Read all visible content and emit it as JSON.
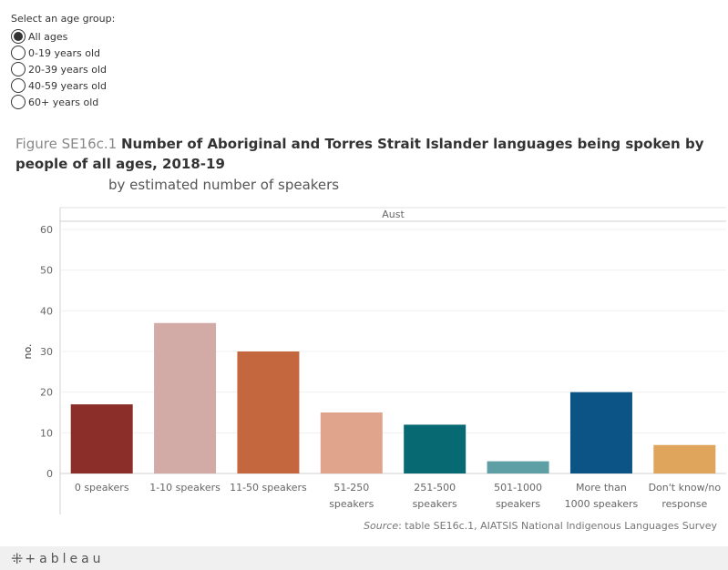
{
  "filter": {
    "title": "Select an age group:",
    "options": [
      "All ages",
      "0-19 years old",
      "20-39 years old",
      "40-59 years old",
      "60+ years old"
    ],
    "selected_index": 0
  },
  "figure": {
    "prefix": "Figure SE16c.1",
    "title": "Number of Aboriginal and Torres Strait Islander languages being spoken by people of all ages, 2018-19",
    "subtitle": "by estimated number of speakers"
  },
  "chart_data": {
    "type": "bar",
    "panel_label": "Aust",
    "ylabel": "no.",
    "ylim": [
      0,
      60
    ],
    "yticks": [
      0,
      10,
      20,
      30,
      40,
      50,
      60
    ],
    "grid": true,
    "categories": [
      [
        "0 speakers"
      ],
      [
        "1-10 speakers"
      ],
      [
        "11-50 speakers"
      ],
      [
        "51-250",
        "speakers"
      ],
      [
        "251-500",
        "speakers"
      ],
      [
        "501-1000",
        "speakers"
      ],
      [
        "More than",
        "1000 speakers"
      ],
      [
        "Don't know/no",
        "response"
      ]
    ],
    "values": [
      17,
      37,
      30,
      15,
      12,
      3,
      20,
      7
    ],
    "colors": [
      "#8B2E2A",
      "#D2ABA7",
      "#C4673E",
      "#DFA48B",
      "#076A72",
      "#5E9FA5",
      "#0C5485",
      "#DFA55C"
    ]
  },
  "source": {
    "label": "Source",
    "text": ": table SE16c.1, AIATSIS National Indigenous Languages Survey"
  },
  "footer": {
    "brand": "+ableau"
  }
}
